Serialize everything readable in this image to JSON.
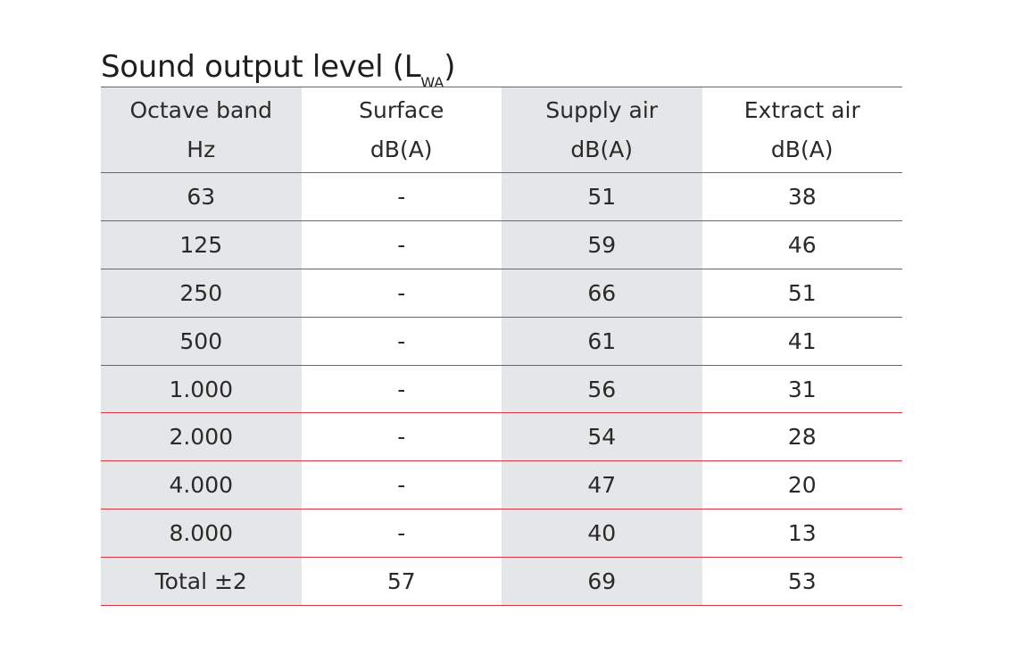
{
  "title": {
    "main": "Sound output level (L",
    "subscript": "WA",
    "close": ")"
  },
  "table": {
    "headers": [
      {
        "line1": "Octave band",
        "line2": "Hz"
      },
      {
        "line1": "Surface",
        "line2": "dB(A)"
      },
      {
        "line1": "Supply air",
        "line2": "dB(A)"
      },
      {
        "line1": "Extract air",
        "line2": "dB(A)"
      }
    ],
    "rows": [
      [
        "63",
        "-",
        "51",
        "38"
      ],
      [
        "125",
        "-",
        "59",
        "46"
      ],
      [
        "250",
        "-",
        "66",
        "51"
      ],
      [
        "500",
        "-",
        "61",
        "41"
      ],
      [
        "1.000",
        "-",
        "56",
        "31"
      ],
      [
        "2.000",
        "-",
        "54",
        "28"
      ],
      [
        "4.000",
        "-",
        "47",
        "20"
      ],
      [
        "8.000",
        "-",
        "40",
        "13"
      ],
      [
        "Total ±2",
        "57",
        "69",
        "53"
      ]
    ]
  },
  "colors": {
    "rule": "#d9343f",
    "shade": "#e5e6e8",
    "text": "#2a2a2a"
  }
}
